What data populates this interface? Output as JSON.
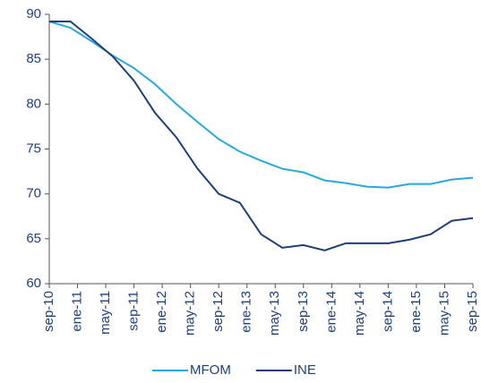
{
  "chart_data": {
    "type": "line",
    "x": [
      "2010-09",
      "2010-12",
      "2011-03",
      "2011-06",
      "2011-09",
      "2011-12",
      "2012-03",
      "2012-06",
      "2012-09",
      "2012-12",
      "2013-03",
      "2013-06",
      "2013-09",
      "2013-12",
      "2014-03",
      "2014-06",
      "2014-09",
      "2014-12",
      "2015-03",
      "2015-06",
      "2015-09"
    ],
    "series": [
      {
        "name": "MFOM",
        "color": "#29a8e0",
        "values": [
          89.2,
          88.5,
          87,
          85.4,
          84,
          82.2,
          80,
          78,
          76.1,
          74.7,
          73.7,
          72.8,
          72.4,
          71.5,
          71.2,
          70.8,
          70.7,
          71.1,
          71.1,
          71.6,
          71.8
        ]
      },
      {
        "name": "INE",
        "color": "#1f3f7a",
        "values": [
          89.2,
          89.2,
          87.3,
          85.3,
          82.6,
          79,
          76.3,
          72.8,
          70,
          69,
          65.5,
          64,
          64.3,
          63.7,
          64.5,
          64.5,
          64.5,
          64.9,
          65.5,
          67,
          67.3
        ]
      }
    ],
    "xlim": [
      "2010-09",
      "2015-09"
    ],
    "xticks": [
      {
        "value": "2010-09",
        "label": "sep-10"
      },
      {
        "value": "2011-01",
        "label": "ene-11"
      },
      {
        "value": "2011-05",
        "label": "may-11"
      },
      {
        "value": "2011-09",
        "label": "sep-11"
      },
      {
        "value": "2012-01",
        "label": "ene-12"
      },
      {
        "value": "2012-05",
        "label": "may-12"
      },
      {
        "value": "2012-09",
        "label": "sep-12"
      },
      {
        "value": "2013-01",
        "label": "ene-13"
      },
      {
        "value": "2013-05",
        "label": "may-13"
      },
      {
        "value": "2013-09",
        "label": "sep-13"
      },
      {
        "value": "2014-01",
        "label": "ene-14"
      },
      {
        "value": "2014-05",
        "label": "may-14"
      },
      {
        "value": "2014-09",
        "label": "sep-14"
      },
      {
        "value": "2015-01",
        "label": "ene-15"
      },
      {
        "value": "2015-05",
        "label": "may-15"
      },
      {
        "value": "2015-09",
        "label": "sep-15"
      }
    ],
    "ylim": [
      60,
      90
    ],
    "yticks": [
      60,
      65,
      70,
      75,
      80,
      85,
      90
    ],
    "grid": false,
    "legend": "bottom"
  }
}
